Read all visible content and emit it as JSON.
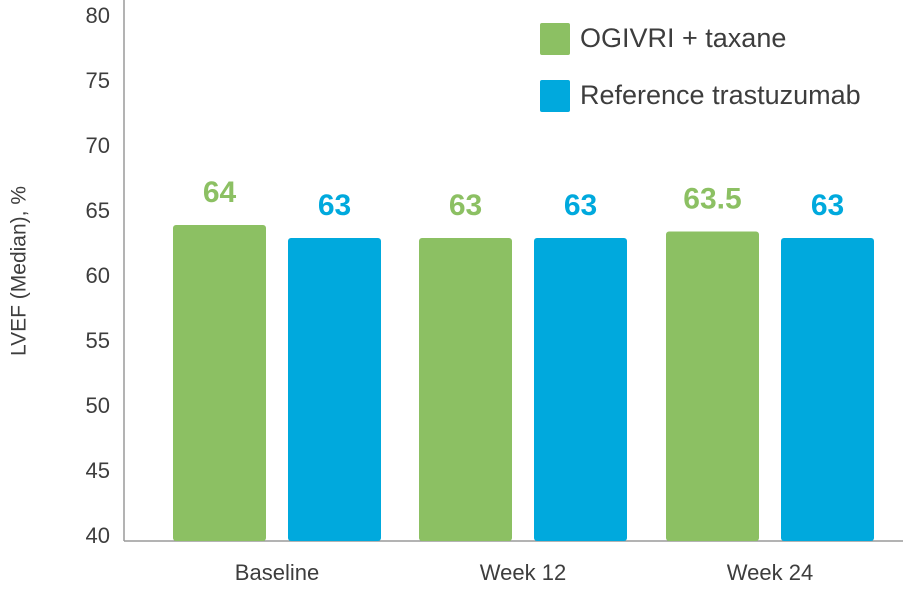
{
  "chart_data": {
    "type": "bar",
    "ylabel": "LVEF (Median), %",
    "xlabel": "",
    "ylim": [
      40,
      80
    ],
    "yticks": [
      40,
      45,
      50,
      55,
      60,
      65,
      70,
      75,
      80
    ],
    "grid": false,
    "legend_position": "top-right",
    "categories": [
      "Baseline",
      "Week 12",
      "Week 24"
    ],
    "series": [
      {
        "name": "OGIVRI + taxane",
        "color": "#8cc063",
        "values": [
          64,
          63,
          63.5
        ],
        "labels": [
          "64",
          "63",
          "63.5"
        ]
      },
      {
        "name": "Reference trastuzumab",
        "color": "#00a9dd",
        "values": [
          63,
          63,
          63
        ],
        "labels": [
          "63",
          "63",
          "63"
        ]
      }
    ]
  }
}
